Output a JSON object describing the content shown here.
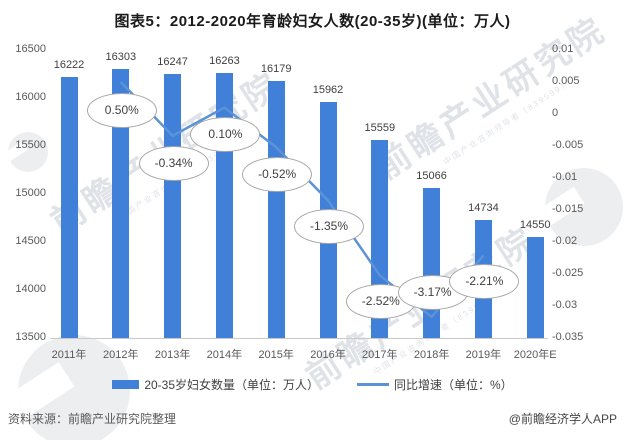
{
  "title": "图表5：2012-2020年育龄妇女人数(20-35岁)(单位：万人)",
  "chart_data": {
    "type": "bar+line",
    "title": "图表5：2012-2020年育龄妇女人数(20-35岁)(单位：万人)",
    "categories": [
      "2011年",
      "2012年",
      "2013年",
      "2014年",
      "2015年",
      "2016年",
      "2017年",
      "2018年",
      "2019年",
      "2020年E"
    ],
    "series": [
      {
        "name": "20-35岁妇女数量（单位：万人）",
        "type": "bar",
        "axis": "left",
        "values": [
          16222,
          16303,
          16247,
          16263,
          16179,
          15962,
          15559,
          15066,
          14734,
          14550
        ],
        "labels": [
          "16222",
          "16303",
          "16247",
          "16263",
          "16179",
          "15962",
          "15559",
          "15066",
          "14734",
          "14550"
        ]
      },
      {
        "name": "同比增速（单位：%）",
        "type": "line",
        "axis": "right",
        "values": [
          null,
          0.005,
          -0.0034,
          0.001,
          -0.0052,
          -0.0135,
          -0.0252,
          -0.0317,
          -0.0221,
          null
        ],
        "labels": [
          null,
          "0.50%",
          "-0.34%",
          "0.10%",
          "-0.52%",
          "-1.35%",
          "-2.52%",
          "-3.17%",
          "-2.21%",
          null
        ]
      }
    ],
    "left_axis": {
      "ticks": [
        "16500",
        "16000",
        "15500",
        "15000",
        "14500",
        "14000",
        "13500"
      ],
      "min": 13500,
      "max": 16500
    },
    "right_axis": {
      "ticks": [
        "0.01",
        "0.005",
        "0",
        "-0.005",
        "-0.01",
        "-0.015",
        "-0.02",
        "-0.025",
        "-0.03",
        "-0.035"
      ],
      "min": -0.035,
      "max": 0.01
    },
    "grid": false,
    "legend_position": "bottom",
    "colors": {
      "bar": "#4080d8",
      "line": "#5b92d8"
    }
  },
  "footer": {
    "source": "资料来源：前瞻产业研究院整理",
    "credit": "@前瞻经济学人APP"
  },
  "watermark": {
    "text": "前瞻产业研究院",
    "subtext": "中国产业咨询领导者（839599）"
  }
}
